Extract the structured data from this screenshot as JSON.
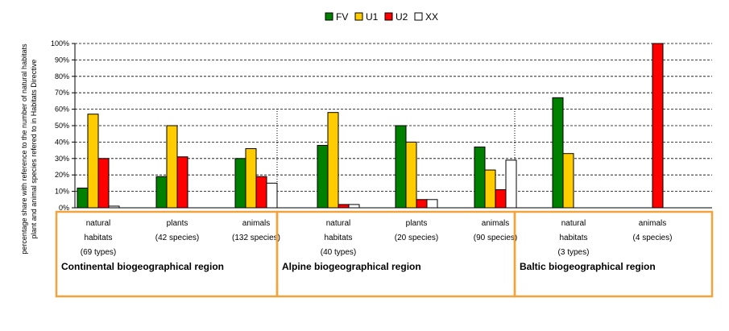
{
  "chart_data": {
    "type": "bar",
    "ylabel_lines": [
      "percentage share with reference to the number of natural habitats",
      "plant and animal species refered to in Habitats Directive"
    ],
    "ylim": [
      0,
      100
    ],
    "yticks": [
      "0%",
      "10%",
      "20%",
      "30%",
      "40%",
      "50%",
      "60%",
      "70%",
      "80%",
      "90%",
      "100%"
    ],
    "grid": true,
    "legend_position": "top-center",
    "series": [
      {
        "name": "FV",
        "color": "#008000"
      },
      {
        "name": "U1",
        "color": "#FFCC00"
      },
      {
        "name": "U2",
        "color": "#FF0000"
      },
      {
        "name": "XX",
        "color": "#FFFFFF"
      }
    ],
    "regions": [
      {
        "name": "Continental biogeographical region",
        "border_color": "#F4A33A",
        "groups": [
          {
            "label_lines": [
              "natural",
              "habitats",
              "(69 types)"
            ],
            "values": {
              "FV": 12,
              "U1": 57,
              "U2": 30,
              "XX": 1
            }
          },
          {
            "label_lines": [
              "plants",
              "(42 species)"
            ],
            "values": {
              "FV": 19,
              "U1": 50,
              "U2": 31,
              "XX": 0
            }
          },
          {
            "label_lines": [
              "animals",
              "(132 species)"
            ],
            "values": {
              "FV": 30,
              "U1": 36,
              "U2": 19,
              "XX": 15
            }
          }
        ]
      },
      {
        "name": "Alpine biogeographical region",
        "border_color": "#F4A33A",
        "groups": [
          {
            "label_lines": [
              "natural",
              "habitats",
              "(40 types)"
            ],
            "values": {
              "FV": 38,
              "U1": 58,
              "U2": 2,
              "XX": 2
            }
          },
          {
            "label_lines": [
              "plants",
              "(20 species)"
            ],
            "values": {
              "FV": 50,
              "U1": 40,
              "U2": 5,
              "XX": 5
            }
          },
          {
            "label_lines": [
              "animals",
              "(90 species)"
            ],
            "values": {
              "FV": 37,
              "U1": 23,
              "U2": 11,
              "XX": 29
            }
          }
        ]
      },
      {
        "name": "Baltic biogeographical region",
        "border_color": "#F4A33A",
        "groups": [
          {
            "label_lines": [
              "natural",
              "habitats",
              "(3 types)"
            ],
            "values": {
              "FV": 67,
              "U1": 33,
              "U2": 0,
              "XX": 0
            }
          },
          {
            "label_lines": [
              "animals",
              "(4 species)"
            ],
            "values": {
              "FV": 0,
              "U1": 0,
              "U2": 100,
              "XX": 0
            }
          }
        ]
      }
    ]
  }
}
